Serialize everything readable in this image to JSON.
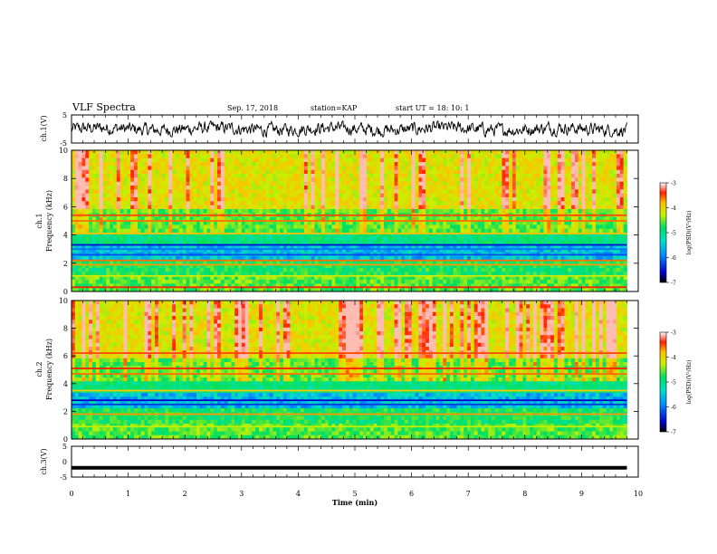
{
  "header": {
    "title": "VLF Spectra",
    "date": "Sep. 17, 2018",
    "station": "station=KAP",
    "start_ut": "start  UT =   18: 10: 1"
  },
  "chart_data": [
    {
      "type": "line",
      "panel": "ch1-waveform",
      "ylabel": "ch.1(V)",
      "xlim": [
        0,
        10
      ],
      "ylim": [
        -5,
        5
      ],
      "yticks": [
        "5",
        "-5"
      ],
      "style": "noisy waveform, amplitude roughly +/-2 V, ends near 9.8 min",
      "color": "#000000"
    },
    {
      "type": "heatmap",
      "panel": "ch1-spectrogram",
      "ylabel_line1": "ch.1",
      "ylabel_line2": "Frequency (kHz)",
      "xlim": [
        0,
        10
      ],
      "ylim": [
        0,
        10
      ],
      "yticks": [
        "0",
        "2",
        "4",
        "6",
        "8",
        "10"
      ],
      "data_end_min": 9.8,
      "colorbar": {
        "label": "log(PSD)(V²/Hz)",
        "range": [
          -7,
          -3
        ],
        "ticks": [
          "-3",
          "-4",
          "-5",
          "-6",
          "-7"
        ]
      },
      "bands_khz": [
        {
          "freq": 5.4,
          "level": -3.5
        },
        {
          "freq": 5.0,
          "level": -3.6
        },
        {
          "freq": 4.1,
          "level": -3.8
        },
        {
          "freq": 3.3,
          "level": -6.5
        },
        {
          "freq": 3.0,
          "level": -6.0
        },
        {
          "freq": 2.6,
          "level": -6.2
        },
        {
          "freq": 2.2,
          "level": -3.6
        },
        {
          "freq": 1.9,
          "level": -3.7
        },
        {
          "freq": 1.1,
          "level": -4.2
        },
        {
          "freq": 0.3,
          "level": -3.4
        }
      ]
    },
    {
      "type": "heatmap",
      "panel": "ch2-spectrogram",
      "ylabel_line1": "ch.2",
      "ylabel_line2": "Frequency (kHz)",
      "xlim": [
        0,
        10
      ],
      "ylim": [
        0,
        10
      ],
      "yticks": [
        "0",
        "2",
        "4",
        "6",
        "8",
        "10"
      ],
      "data_end_min": 9.8,
      "colorbar": {
        "label": "log(PSD)(V²/Hz)",
        "range": [
          -7,
          -3
        ],
        "ticks": [
          "-3",
          "-4",
          "-5",
          "-6",
          "-7"
        ]
      },
      "bands_khz": [
        {
          "freq": 6.2,
          "level": -3.5
        },
        {
          "freq": 5.1,
          "level": -3.4
        },
        {
          "freq": 4.7,
          "level": -3.6
        },
        {
          "freq": 3.5,
          "level": -3.9
        },
        {
          "freq": 2.8,
          "level": -6.6
        },
        {
          "freq": 2.5,
          "level": -6.3
        },
        {
          "freq": 1.8,
          "level": -3.7
        },
        {
          "freq": 0.9,
          "level": -4.3
        }
      ]
    },
    {
      "type": "line",
      "panel": "ch3-waveform",
      "ylabel": "ch.3(V)",
      "xlim": [
        0,
        10
      ],
      "ylim": [
        -5,
        5
      ],
      "yticks": [
        "5",
        "0",
        "-5"
      ],
      "x": [
        0,
        9.8
      ],
      "y": [
        -2,
        -2
      ],
      "color": "#000000"
    }
  ],
  "xaxis": {
    "label": "Time (min)",
    "ticks": [
      "0",
      "1",
      "2",
      "3",
      "4",
      "5",
      "6",
      "7",
      "8",
      "9",
      "10"
    ],
    "range": [
      0,
      10
    ]
  }
}
